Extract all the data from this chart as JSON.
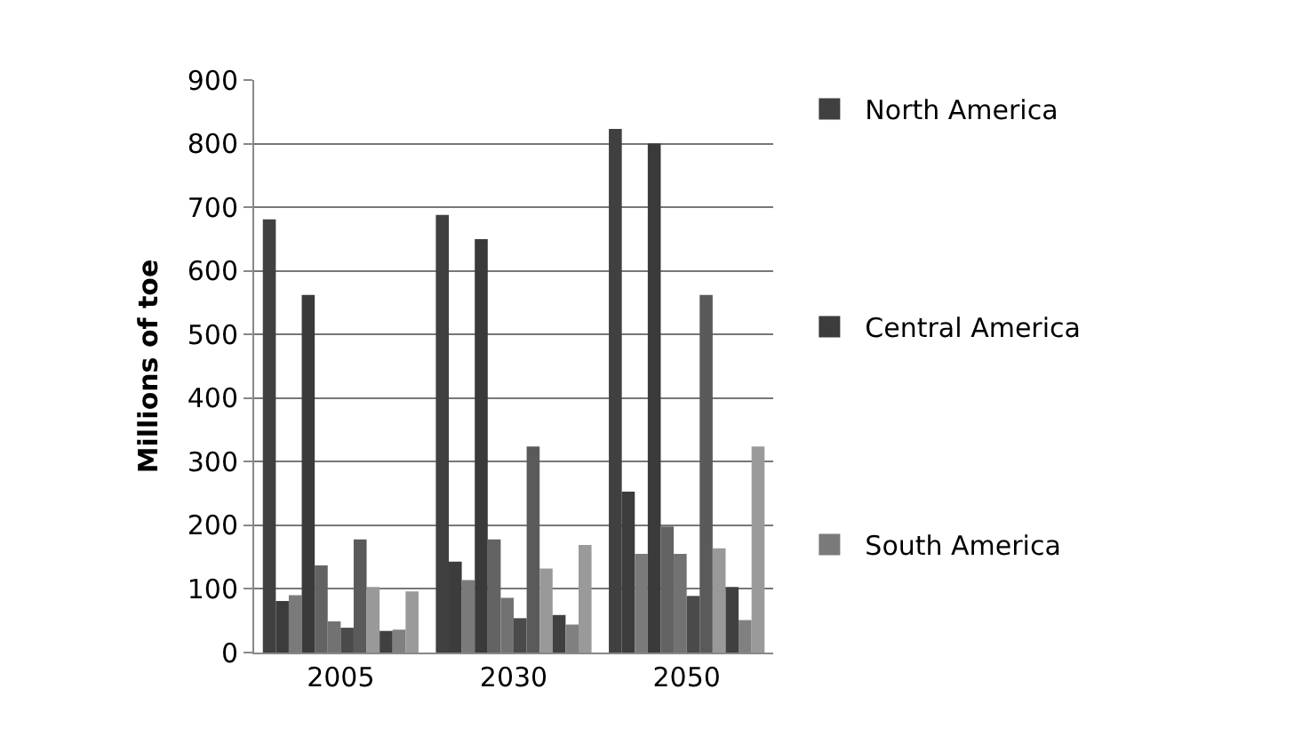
{
  "chart_data": {
    "type": "bar",
    "ylabel": "Millions of toe",
    "categories": [
      "2005",
      "2030",
      "2050"
    ],
    "ylim": [
      0,
      900
    ],
    "yticks": [
      0,
      100,
      200,
      300,
      400,
      500,
      600,
      700,
      800,
      900
    ],
    "grid": "y",
    "legend": "right",
    "series": [
      {
        "name": "North America",
        "color": "#404040",
        "values": [
          681,
          688,
          823
        ]
      },
      {
        "name": "Central America",
        "color": "#3c3c3c",
        "values": [
          81,
          143,
          253
        ]
      },
      {
        "name": "South America",
        "color": "#7a7a7a",
        "values": [
          90,
          114,
          155
        ]
      },
      {
        "color": "#3a3a3a",
        "values": [
          562,
          650,
          800
        ]
      },
      {
        "color": "#636363",
        "values": [
          137,
          178,
          198
        ]
      },
      {
        "color": "#727272",
        "values": [
          49,
          86,
          155
        ]
      },
      {
        "color": "#4a4a4a",
        "values": [
          39,
          54,
          89
        ]
      },
      {
        "color": "#5a5a5a",
        "values": [
          178,
          324,
          562
        ]
      },
      {
        "color": "#999999",
        "values": [
          103,
          132,
          164
        ]
      },
      {
        "color": "#404040",
        "values": [
          34,
          59,
          103
        ]
      },
      {
        "color": "#808080",
        "values": [
          36,
          44,
          51
        ]
      },
      {
        "color": "#9a9a9a",
        "values": [
          96,
          169,
          324
        ]
      }
    ]
  }
}
